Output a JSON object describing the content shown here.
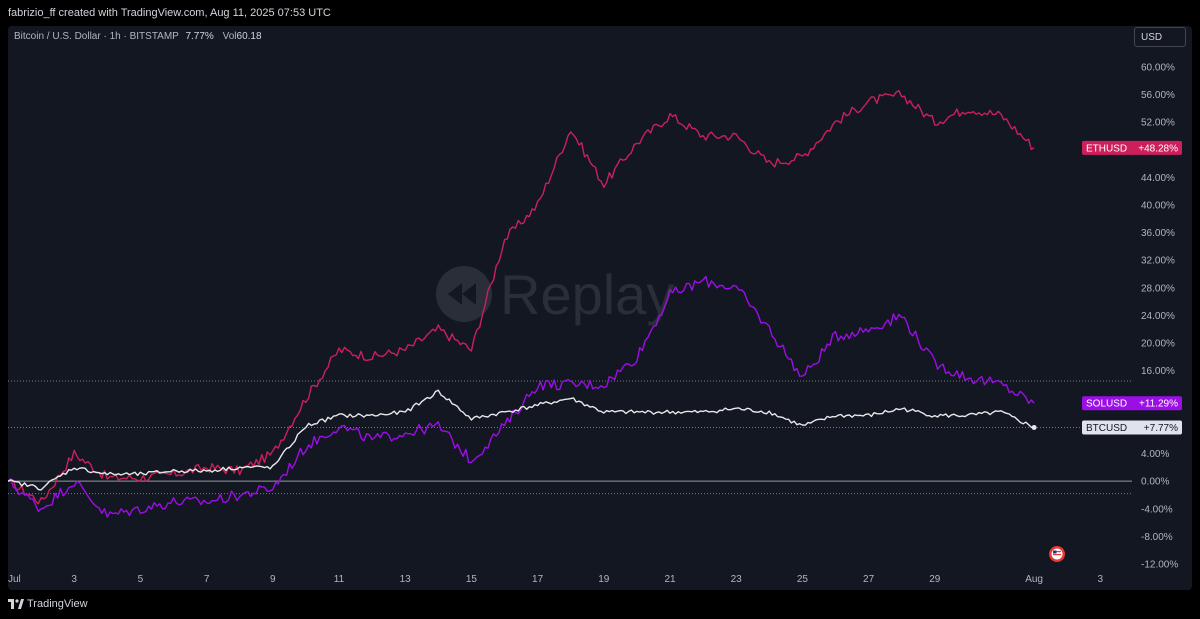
{
  "header": {
    "credit": "fabrizio_ff created with TradingView.com, Aug 11, 2025 07:53 UTC"
  },
  "legend": {
    "symbol": "Bitcoin / U.S. Dollar · 1h · BITSTAMP",
    "change": "7.77%",
    "vol_label": "Vol",
    "vol_value": "60.18"
  },
  "currency_button": "USD",
  "watermark": "Replay",
  "footer": {
    "brand": "TradingView"
  },
  "colors": {
    "background": "#131722",
    "ETHUSD": "#cc1f5c",
    "SOLUSD": "#9c0ee6",
    "BTCUSD": "#e8e8e8",
    "grid_dotted": "#787b86",
    "zero_line": "#9598a1"
  },
  "icons": [
    "replay-icon",
    "us-flag-icon",
    "tradingview-logo-icon"
  ],
  "chart_data": {
    "type": "line",
    "title": "Bitcoin / U.S. Dollar · 1h · BITSTAMP",
    "x_labels": [
      "Jul",
      "3",
      "5",
      "7",
      "9",
      "11",
      "13",
      "15",
      "17",
      "19",
      "21",
      "23",
      "25",
      "27",
      "29",
      "Aug",
      "3"
    ],
    "x": [
      "Jul 1",
      "Jul 2",
      "Jul 3",
      "Jul 4",
      "Jul 5",
      "Jul 6",
      "Jul 7",
      "Jul 8",
      "Jul 9",
      "Jul 10",
      "Jul 11",
      "Jul 12",
      "Jul 13",
      "Jul 14",
      "Jul 15",
      "Jul 16",
      "Jul 17",
      "Jul 18",
      "Jul 19",
      "Jul 20",
      "Jul 21",
      "Jul 22",
      "Jul 23",
      "Jul 24",
      "Jul 25",
      "Jul 26",
      "Jul 27",
      "Jul 28",
      "Jul 29",
      "Jul 30",
      "Jul 31",
      "Aug 1"
    ],
    "y_ticks": [
      "60.00%",
      "56.00%",
      "52.00%",
      "48.00%",
      "44.00%",
      "40.00%",
      "36.00%",
      "32.00%",
      "28.00%",
      "24.00%",
      "20.00%",
      "16.00%",
      "4.00%",
      "0.00%",
      "-4.00%",
      "-8.00%",
      "-12.00%"
    ],
    "ylim": [
      -12,
      61
    ],
    "yunit": "%",
    "series": [
      {
        "name": "ETHUSD",
        "last_label": "+48.28%",
        "values": [
          0,
          -3,
          4,
          0.5,
          0.5,
          1,
          2,
          1.5,
          4,
          12,
          19,
          18,
          19,
          22,
          19,
          35,
          40,
          51,
          43,
          49,
          53,
          50,
          50,
          46,
          47,
          52,
          55,
          56,
          52,
          54,
          53,
          48.28
        ]
      },
      {
        "name": "SOLUSD",
        "last_label": "+11.29%",
        "values": [
          0,
          -4,
          0,
          -5,
          -4,
          -3,
          -3,
          -2,
          -1,
          5,
          8,
          6,
          7,
          8,
          3,
          8,
          14,
          14,
          14,
          18,
          27,
          29,
          28,
          22,
          15,
          21,
          22,
          24,
          17,
          15,
          14,
          11.29
        ]
      },
      {
        "name": "BTCUSD",
        "last_label": "+7.77%",
        "values": [
          0,
          -1,
          2,
          1,
          1,
          1.5,
          1.5,
          2,
          2,
          8,
          9.5,
          9.5,
          10,
          13,
          9,
          10,
          11,
          12,
          10,
          10,
          10,
          10,
          10.5,
          10,
          8,
          9.5,
          9.5,
          10.5,
          9.5,
          9.5,
          10,
          7.77
        ]
      }
    ],
    "grid": false,
    "dotted_reference_lines": [
      14.5,
      7.77,
      -1.8
    ]
  }
}
